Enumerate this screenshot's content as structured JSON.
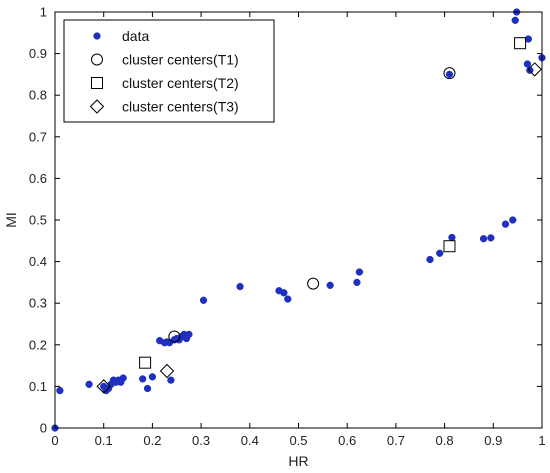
{
  "chart_data": {
    "type": "scatter",
    "xlabel": "HR",
    "ylabel": "MI",
    "xlim": [
      0,
      1
    ],
    "ylim": [
      0,
      1
    ],
    "grid": false,
    "legend_position": "top-left",
    "x_ticks": [
      "0",
      "0.1",
      "0.2",
      "0.3",
      "0.4",
      "0.5",
      "0.6",
      "0.7",
      "0.8",
      "0.9",
      "1"
    ],
    "y_ticks": [
      "0",
      "0.1",
      "0.2",
      "0.3",
      "0.4",
      "0.5",
      "0.6",
      "0.7",
      "0.8",
      "0.9",
      "1"
    ],
    "series": [
      {
        "name": "data",
        "marker": "filled-circle",
        "color": "#1f2fbf",
        "points": [
          [
            0.0,
            0.0
          ],
          [
            0.01,
            0.09
          ],
          [
            0.07,
            0.105
          ],
          [
            0.1,
            0.1
          ],
          [
            0.105,
            0.09
          ],
          [
            0.11,
            0.095
          ],
          [
            0.115,
            0.105
          ],
          [
            0.12,
            0.115
          ],
          [
            0.125,
            0.11
          ],
          [
            0.13,
            0.115
          ],
          [
            0.135,
            0.11
          ],
          [
            0.14,
            0.12
          ],
          [
            0.18,
            0.118
          ],
          [
            0.19,
            0.095
          ],
          [
            0.2,
            0.123
          ],
          [
            0.215,
            0.21
          ],
          [
            0.225,
            0.205
          ],
          [
            0.23,
            0.207
          ],
          [
            0.235,
            0.205
          ],
          [
            0.238,
            0.115
          ],
          [
            0.245,
            0.212
          ],
          [
            0.25,
            0.215
          ],
          [
            0.255,
            0.212
          ],
          [
            0.26,
            0.22
          ],
          [
            0.265,
            0.225
          ],
          [
            0.27,
            0.215
          ],
          [
            0.275,
            0.225
          ],
          [
            0.305,
            0.307
          ],
          [
            0.38,
            0.34
          ],
          [
            0.46,
            0.33
          ],
          [
            0.47,
            0.325
          ],
          [
            0.478,
            0.31
          ],
          [
            0.565,
            0.343
          ],
          [
            0.62,
            0.35
          ],
          [
            0.625,
            0.375
          ],
          [
            0.77,
            0.405
          ],
          [
            0.79,
            0.42
          ],
          [
            0.81,
            0.85
          ],
          [
            0.815,
            0.458
          ],
          [
            0.88,
            0.455
          ],
          [
            0.895,
            0.457
          ],
          [
            0.925,
            0.49
          ],
          [
            0.94,
            0.5
          ],
          [
            0.945,
            0.98
          ],
          [
            0.948,
            1.0
          ],
          [
            0.97,
            0.875
          ],
          [
            0.972,
            0.935
          ],
          [
            0.975,
            0.86
          ],
          [
            1.0,
            0.89
          ]
        ]
      },
      {
        "name": "cluster centers(T1)",
        "marker": "open-circle",
        "color": "#000000",
        "points": [
          [
            0.245,
            0.22
          ],
          [
            0.53,
            0.347
          ],
          [
            0.81,
            0.853
          ]
        ]
      },
      {
        "name": "cluster centers(T2)",
        "marker": "open-square",
        "color": "#000000",
        "points": [
          [
            0.185,
            0.157
          ],
          [
            0.81,
            0.437
          ],
          [
            0.955,
            0.925
          ]
        ]
      },
      {
        "name": "cluster centers(T3)",
        "marker": "open-diamond",
        "color": "#000000",
        "points": [
          [
            0.1,
            0.1
          ],
          [
            0.23,
            0.137
          ],
          [
            0.985,
            0.862
          ]
        ]
      }
    ]
  }
}
